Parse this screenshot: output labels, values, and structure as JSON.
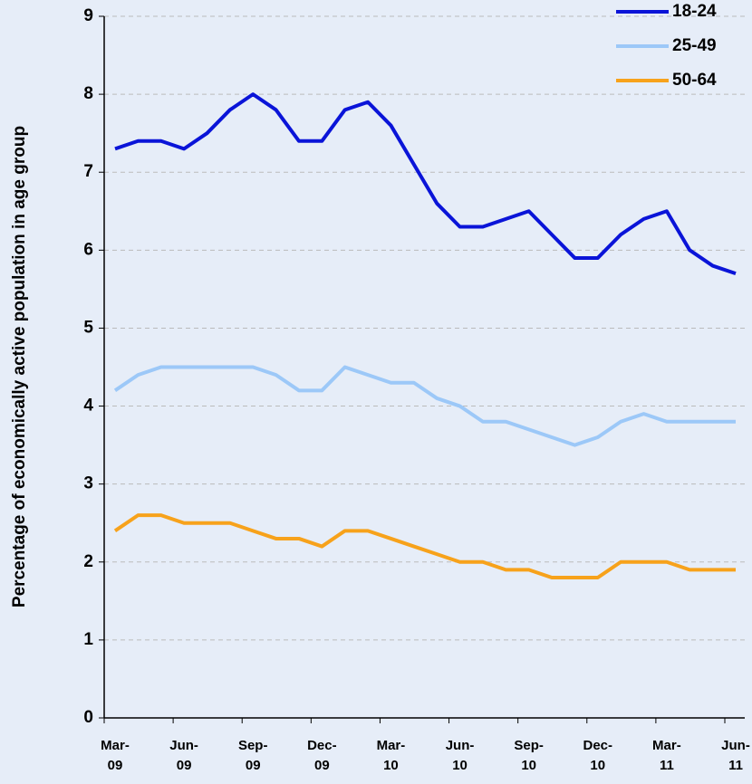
{
  "chart_data": {
    "type": "line",
    "y_label": "Percentage of economically active population in age group",
    "categories": [
      "Mar-\n09",
      null,
      null,
      "Jun-\n09",
      null,
      null,
      "Sep-\n09",
      null,
      null,
      "Dec-\n09",
      null,
      null,
      "Mar-\n10",
      null,
      null,
      "Jun-\n10",
      null,
      null,
      "Sep-\n10",
      null,
      null,
      "Dec-\n10",
      null,
      null,
      "Mar-\n11",
      null,
      null,
      "Jun-\n11"
    ],
    "series": [
      {
        "name": "18-24",
        "color": "#0a14d8",
        "values": [
          7.3,
          7.4,
          7.4,
          7.3,
          7.5,
          7.8,
          8.0,
          7.8,
          7.4,
          7.4,
          7.8,
          7.9,
          7.6,
          7.1,
          6.6,
          6.3,
          6.3,
          6.4,
          6.5,
          6.2,
          5.9,
          5.9,
          6.2,
          6.4,
          6.5,
          6.0,
          5.8,
          5.7
        ]
      },
      {
        "name": "25-49",
        "color": "#9cc8f8",
        "values": [
          4.2,
          4.4,
          4.5,
          4.5,
          4.5,
          4.5,
          4.5,
          4.4,
          4.2,
          4.2,
          4.5,
          4.4,
          4.3,
          4.3,
          4.1,
          4.0,
          3.8,
          3.8,
          3.7,
          3.6,
          3.5,
          3.6,
          3.8,
          3.9,
          3.8,
          3.8,
          3.8,
          3.8
        ]
      },
      {
        "name": "50-64",
        "color": "#f7a21b",
        "values": [
          2.4,
          2.6,
          2.6,
          2.5,
          2.5,
          2.5,
          2.4,
          2.3,
          2.3,
          2.2,
          2.4,
          2.4,
          2.3,
          2.2,
          2.1,
          2.0,
          2.0,
          1.9,
          1.9,
          1.8,
          1.8,
          1.8,
          2.0,
          2.0,
          2.0,
          1.9,
          1.9,
          1.9
        ]
      }
    ],
    "ylim": [
      0,
      9
    ],
    "yticks": [
      0,
      1,
      2,
      3,
      4,
      5,
      6,
      7,
      8,
      9
    ],
    "grid": true,
    "legend": "top-right"
  }
}
